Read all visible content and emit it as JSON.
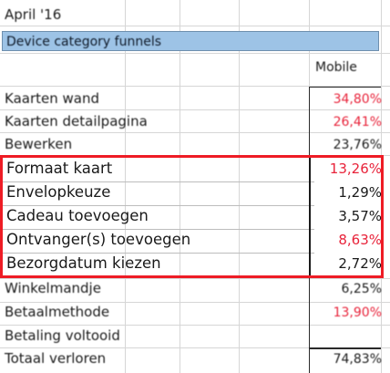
{
  "sheet": {
    "title": "April '16",
    "header": "Device category funnels",
    "column_header": "Mobile",
    "rows": [
      {
        "label": "Kaarten wand",
        "value": "34,80%",
        "color": "#e8233a"
      },
      {
        "label": "Kaarten detailpagina",
        "value": "26,41%",
        "color": "#e8233a"
      },
      {
        "label": "Bewerken",
        "value": "23,76%",
        "color": "#1a1a1a"
      },
      {
        "label": "Formaat kaart",
        "value": "13,26%",
        "color": "#e8233a"
      },
      {
        "label": "Envelopkeuze",
        "value": "1,29%",
        "color": "#1a1a1a"
      },
      {
        "label": "Cadeau toevoegen",
        "value": "3,57%",
        "color": "#1a1a1a"
      },
      {
        "label": "Ontvanger(s) toevoegen",
        "value": "8,63%",
        "color": "#e8233a"
      },
      {
        "label": "Bezorgdatum kiezen",
        "value": "2,72%",
        "color": "#1a1a1a"
      },
      {
        "label": "Winkelmandje",
        "value": "6,25%",
        "color": "#1a1a1a"
      },
      {
        "label": "Betaalmethode",
        "value": "13,90%",
        "color": "#e8233a"
      },
      {
        "label": "Betaling voltooid",
        "value": "",
        "color": "#1a1a1a"
      },
      {
        "label": "Totaal verloren",
        "value": "74,83%",
        "color": "#1a1a1a"
      }
    ]
  }
}
